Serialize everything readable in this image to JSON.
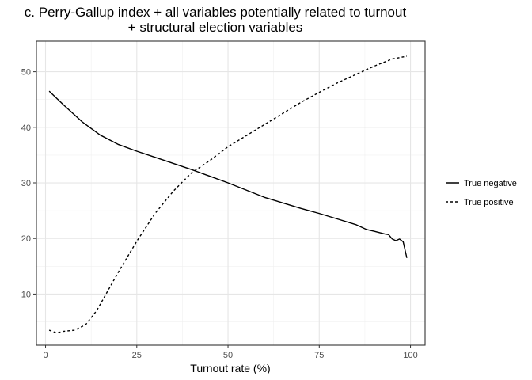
{
  "chart_data": {
    "type": "line",
    "title": "c. Perry-Gallup index + all variables potentially related to turnout",
    "subtitle": "+ structural election variables",
    "xlabel": "Turnout rate (%)",
    "ylabel": "",
    "xlim": [
      -2.5,
      104
    ],
    "ylim": [
      0.8,
      55.5
    ],
    "x_ticks": [
      0,
      25,
      50,
      75,
      100
    ],
    "y_ticks": [
      10,
      20,
      30,
      40,
      50
    ],
    "grid": true,
    "legend_position": "right",
    "series": [
      {
        "name": "True negative",
        "line_style": "solid",
        "color": "#000000",
        "x": [
          1,
          5,
          10,
          15,
          20,
          25,
          30,
          35,
          40,
          45,
          50,
          55,
          60,
          65,
          70,
          75,
          80,
          85,
          88,
          90,
          93,
          94,
          95,
          96,
          97,
          98,
          99
        ],
        "y": [
          46.5,
          44.0,
          41.0,
          38.6,
          36.9,
          35.7,
          34.6,
          33.5,
          32.4,
          31.2,
          30.0,
          28.7,
          27.4,
          26.4,
          25.4,
          24.5,
          23.5,
          22.5,
          21.6,
          21.3,
          20.8,
          20.7,
          19.9,
          19.6,
          19.9,
          19.4,
          16.5
        ]
      },
      {
        "name": "True positive",
        "line_style": "dashed",
        "color": "#000000",
        "x": [
          1,
          3,
          5,
          8,
          11,
          14,
          17,
          20,
          25,
          30,
          35,
          40,
          45,
          50,
          55,
          60,
          65,
          70,
          75,
          80,
          85,
          90,
          95,
          99
        ],
        "y": [
          3.5,
          3.0,
          3.3,
          3.5,
          4.5,
          7.0,
          10.5,
          14.0,
          19.5,
          24.5,
          28.5,
          31.8,
          34.0,
          36.5,
          38.5,
          40.5,
          42.5,
          44.5,
          46.3,
          48.0,
          49.5,
          51.0,
          52.3,
          52.8
        ]
      }
    ]
  }
}
